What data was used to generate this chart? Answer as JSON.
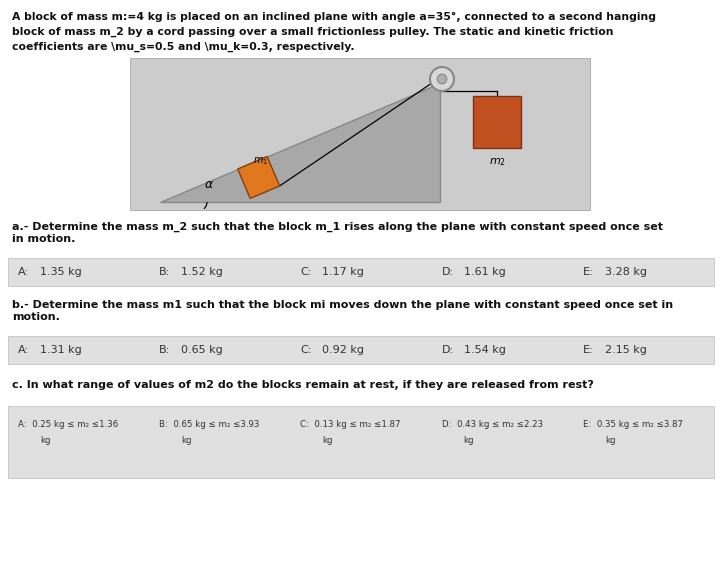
{
  "title_line1": "A block of mass m:=4 kg is placed on an inclined plane with angle a=35°, connected to a second hanging",
  "title_line2": "block of mass m_2 by a cord passing over a small frictionless pulley. The static and kinetic friction",
  "title_line3": "coefficients are \\mu_s=0.5 and \\mu_k=0.3, respectively.",
  "part_a_question": "a.- Determine the mass m_2 such that the block m_1 rises along the plane with constant speed once set\nin motion.",
  "part_a_options": [
    [
      "A:",
      "1.35 kg"
    ],
    [
      "B:",
      "1.52 kg"
    ],
    [
      "C:",
      "1.17 kg"
    ],
    [
      "D:",
      "1.61 kg"
    ],
    [
      "E:",
      "3.28 kg"
    ]
  ],
  "part_b_question": "b.- Determine the mass m1 such that the block mi moves down the plane with constant speed once set in\nmotion.",
  "part_b_options": [
    [
      "A:",
      "1.31 kg"
    ],
    [
      "B:",
      "0.65 kg"
    ],
    [
      "C:",
      "0.92 kg"
    ],
    [
      "D:",
      "1.54 kg"
    ],
    [
      "E:",
      "2.15 kg"
    ]
  ],
  "part_c_question": "c. In what range of values of m2 do the blocks remain at rest, if they are released from rest?",
  "part_c_options_line1": [
    "A:  0.25 kg ≤ m₂ ≤1.36",
    "B:  0.65 kg ≤ m₂ ≤3.93",
    "C:  0.13 kg ≤ m₂ ≤1.87",
    "D:  0.43 kg ≤ m₂ ≤2.23",
    "E:  0.35 kg ≤ m₂ ≤3.87"
  ],
  "part_c_options_line2": [
    "kg",
    "kg",
    "kg",
    "kg",
    "kg"
  ],
  "bg_color": "#ffffff",
  "table_bg": "#e0e0e0",
  "diagram_bg": "#cccccc",
  "incline_color": "#a8a8a8",
  "block1_color": "#e07820",
  "block2_color": "#c05020",
  "pulley_color": "#b0b0b0"
}
